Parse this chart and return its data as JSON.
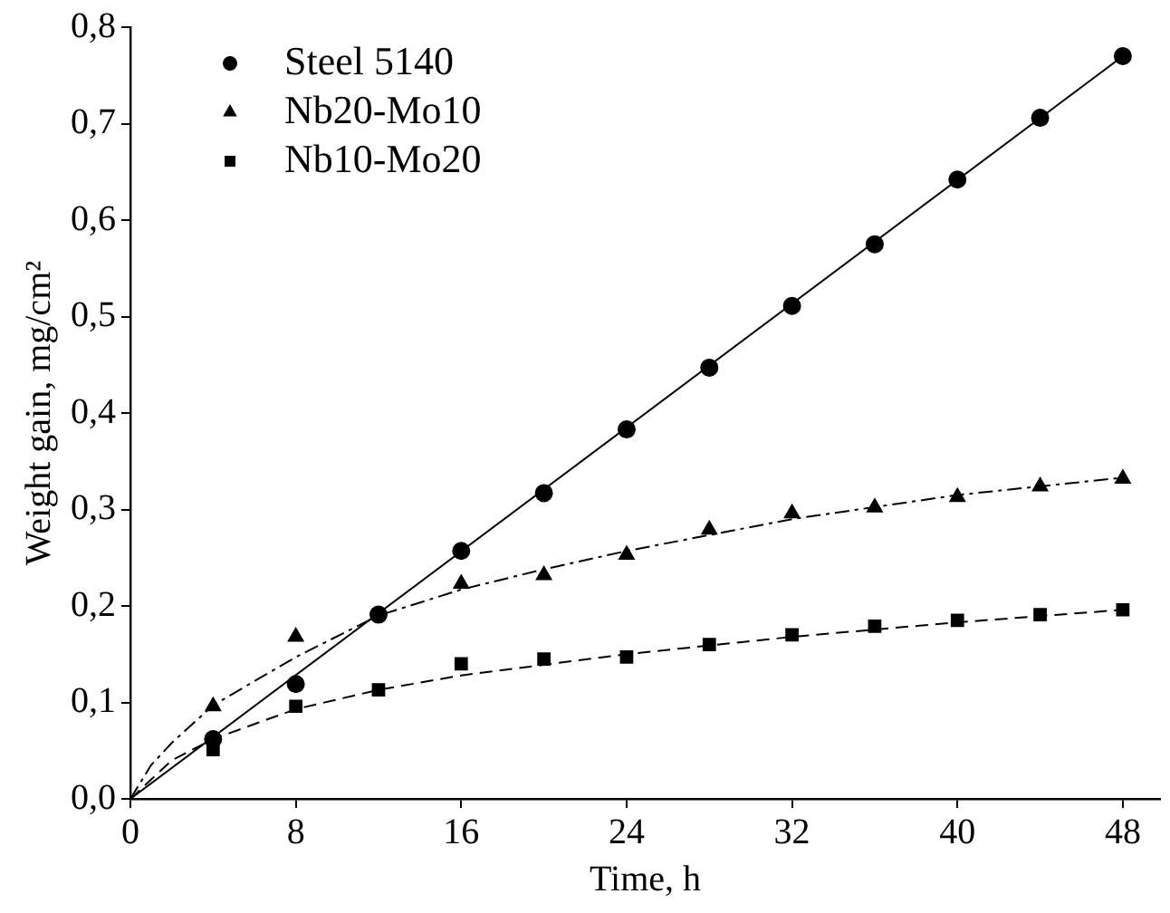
{
  "chart_data": {
    "type": "scatter",
    "xlabel": "Time, h",
    "ylabel": "Weight gain, mg/cm²",
    "xlim": [
      0,
      49.8
    ],
    "xticks": [
      0,
      8,
      16,
      24,
      32,
      40,
      48
    ],
    "ylim": [
      0,
      0.8
    ],
    "yticks": [
      {
        "value": 0,
        "label": "0,0"
      },
      {
        "value": 0.1,
        "label": "0,1"
      },
      {
        "value": 0.2,
        "label": "0,2"
      },
      {
        "value": 0.3,
        "label": "0,3"
      },
      {
        "value": 0.4,
        "label": "0,4"
      },
      {
        "value": 0.5,
        "label": "0,5"
      },
      {
        "value": 0.6,
        "label": "0,6"
      },
      {
        "value": 0.7,
        "label": "0,7"
      },
      {
        "value": 0.8,
        "label": "0,8"
      }
    ],
    "grid": false,
    "legend": "top left",
    "series": [
      {
        "type": "line",
        "color": "#000000",
        "line_style": "solid",
        "marker": "none",
        "x": [
          0,
          48
        ],
        "values": [
          0,
          0.77
        ]
      },
      {
        "type": "line",
        "color": "#000000",
        "line_style": "dotted",
        "marker": "none",
        "x": [
          0,
          1,
          2,
          4,
          8,
          12,
          16,
          20,
          24,
          32,
          40,
          48
        ],
        "values": [
          0,
          0.035,
          0.058,
          0.097,
          0.147,
          0.19,
          0.217,
          0.238,
          0.257,
          0.29,
          0.315,
          0.333
        ]
      },
      {
        "type": "line",
        "color": "#000000",
        "line_style": "dashed",
        "marker": "none",
        "x": [
          0,
          1,
          2,
          4,
          8,
          12,
          16,
          24,
          32,
          40,
          48
        ],
        "values": [
          0,
          0.02,
          0.04,
          0.062,
          0.093,
          0.113,
          0.128,
          0.15,
          0.168,
          0.183,
          0.196
        ]
      },
      {
        "type": "scatter",
        "name": "Steel 5140",
        "color": "#000000",
        "marker": "circle",
        "x": [
          4,
          8,
          12,
          16,
          20,
          24,
          28,
          32,
          36,
          40,
          44,
          48
        ],
        "values": [
          0.062,
          0.119,
          0.191,
          0.257,
          0.317,
          0.383,
          0.447,
          0.511,
          0.575,
          0.642,
          0.706,
          0.77
        ]
      },
      {
        "type": "scatter",
        "name": "Nb20-Mo10",
        "color": "#000000",
        "marker": "triangle",
        "x": [
          4,
          8,
          12,
          16,
          20,
          24,
          28,
          32,
          36,
          40,
          44,
          48
        ],
        "values": [
          0.096,
          0.168,
          null,
          0.223,
          0.232,
          0.253,
          0.279,
          0.296,
          0.302,
          0.313,
          0.324,
          0.332
        ]
      },
      {
        "type": "scatter",
        "name": "Nb10-Mo20",
        "color": "#000000",
        "marker": "square",
        "x": [
          4,
          8,
          12,
          16,
          20,
          24,
          28,
          32,
          36,
          40,
          44,
          48
        ],
        "values": [
          0.051,
          0.096,
          0.113,
          0.14,
          0.145,
          0.147,
          0.16,
          0.17,
          0.179,
          0.185,
          0.191,
          0.196
        ]
      }
    ]
  }
}
